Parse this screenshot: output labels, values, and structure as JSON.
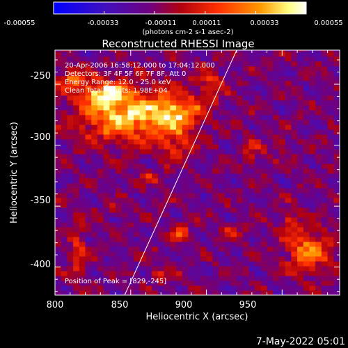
{
  "colorbar": {
    "tick_labels": [
      "-0.00055",
      "-0.00033",
      "-0.00011",
      "0.00011",
      "0.00033",
      "0.00055"
    ],
    "tick_values": [
      -0.00055,
      -0.00033,
      -0.00011,
      0.00011,
      0.00033,
      0.00055
    ],
    "range": [
      -0.00055,
      0.00055
    ],
    "unit_label": "(photons cm-2 s-1 asec-2)",
    "colors": [
      "#0000ff",
      "#5a0090",
      "#a00000",
      "#ff2000",
      "#ff9000",
      "#ffff80",
      "#ffffff"
    ]
  },
  "chart_data": {
    "type": "heatmap",
    "title": "Reconstructed RHESSI Image",
    "xlabel": "Heliocentric X (arcsec)",
    "ylabel": "Heliocentric Y (arcsec)",
    "xlim": [
      800,
      988
    ],
    "ylim": [
      -423,
      -222
    ],
    "x_ticks": [
      800,
      850,
      900,
      950
    ],
    "y_ticks": [
      -250,
      -300,
      -350,
      -400
    ],
    "x_tick_labels": [
      "800",
      "850",
      "900",
      "950"
    ],
    "y_tick_labels": [
      "-250",
      "-300",
      "-350",
      "-400"
    ],
    "annotations": [
      "20-Apr-2006 16:58:12.000 to 17:04:12.000",
      "Detectors: 3F 4F 5F 6F 7F 8F, Att 0",
      "Energy Range: 12.0 - 25.0 keV",
      "Clean     Total counts: 1.98E+04"
    ],
    "peak_label": "Position of Peak = [829,-245]",
    "peak": [
      829,
      -245
    ],
    "limb_line": {
      "from": [
        846,
        -423
      ],
      "to": [
        920,
        -222
      ]
    },
    "bright_regions": [
      {
        "x": 848,
        "y": -275,
        "rx": 32,
        "ry": 22,
        "value": 0.0005
      },
      {
        "x": 880,
        "y": -275,
        "rx": 16,
        "ry": 14,
        "value": 0.00042
      },
      {
        "x": 833,
        "y": -258,
        "rx": 15,
        "ry": 10,
        "value": 0.00045
      },
      {
        "x": 811,
        "y": -245,
        "rx": 10,
        "ry": 8,
        "value": 0.00032
      },
      {
        "x": 902,
        "y": -250,
        "rx": 9,
        "ry": 14,
        "value": 0.00022
      },
      {
        "x": 880,
        "y": -302,
        "rx": 9,
        "ry": 10,
        "value": 0.00024
      },
      {
        "x": 967,
        "y": -387,
        "rx": 14,
        "ry": 18,
        "value": 0.0004
      },
      {
        "x": 955,
        "y": -362,
        "rx": 6,
        "ry": 8,
        "value": 0.00022
      },
      {
        "x": 883,
        "y": -371,
        "rx": 6,
        "ry": 7,
        "value": 0.00036
      },
      {
        "x": 815,
        "y": -385,
        "rx": 5,
        "ry": 28,
        "value": 0.00022
      },
      {
        "x": 864,
        "y": -327,
        "rx": 8,
        "ry": 5,
        "value": 0.00016
      },
      {
        "x": 930,
        "y": -305,
        "rx": 7,
        "ry": 10,
        "value": 0.00018
      },
      {
        "x": 918,
        "y": -370,
        "rx": 8,
        "ry": 6,
        "value": 0.00015
      },
      {
        "x": 840,
        "y": -352,
        "rx": 6,
        "ry": 5,
        "value": 0.00014
      },
      {
        "x": 870,
        "y": -407,
        "rx": 9,
        "ry": 5,
        "value": 0.00016
      },
      {
        "x": 950,
        "y": -300,
        "rx": 5,
        "ry": 6,
        "value": 0.00018
      }
    ]
  },
  "footer": {
    "timestamp": "7-May-2022 05:01"
  }
}
